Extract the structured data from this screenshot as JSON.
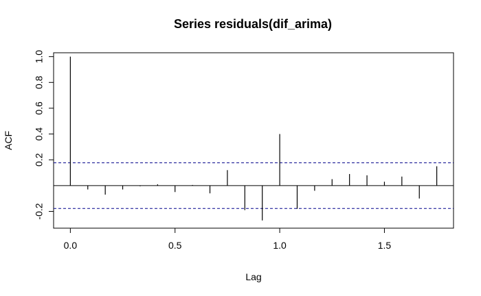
{
  "chart_data": {
    "type": "bar",
    "title": "Series  residuals(dif_arima)",
    "xlabel": "Lag",
    "ylabel": "ACF",
    "xlim": [
      -0.08,
      1.83
    ],
    "ylim": [
      -0.33,
      1.03
    ],
    "x_ticks": [
      {
        "value": 0.0,
        "label": "0.0"
      },
      {
        "value": 0.5,
        "label": "0.5"
      },
      {
        "value": 1.0,
        "label": "1.0"
      },
      {
        "value": 1.5,
        "label": "1.5"
      }
    ],
    "y_ticks": [
      {
        "value": -0.2,
        "label": "-0.2"
      },
      {
        "value": 0.2,
        "label": "0.2"
      },
      {
        "value": 0.4,
        "label": "0.4"
      },
      {
        "value": 0.6,
        "label": "0.6"
      },
      {
        "value": 0.8,
        "label": "0.8"
      },
      {
        "value": 1.0,
        "label": "1.0"
      }
    ],
    "confidence_bound": 0.177,
    "zero_line": true,
    "series": [
      {
        "x": [
          0.0,
          0.0833,
          0.1667,
          0.25,
          0.3333,
          0.4167,
          0.5,
          0.5833,
          0.6667,
          0.75,
          0.8333,
          0.9167,
          1.0,
          1.0833,
          1.1667,
          1.25,
          1.3333,
          1.4167,
          1.5,
          1.5833,
          1.6667,
          1.75
        ],
        "values": [
          1.0,
          -0.03,
          -0.07,
          -0.03,
          -0.005,
          0.01,
          -0.05,
          0.005,
          -0.06,
          0.12,
          -0.19,
          -0.27,
          0.4,
          -0.18,
          -0.04,
          0.05,
          0.09,
          0.08,
          0.03,
          0.07,
          -0.1,
          0.15
        ]
      }
    ],
    "grid": false,
    "colors": {
      "bars": "#000000",
      "confidence": "#00008B",
      "axes": "#000000"
    }
  }
}
